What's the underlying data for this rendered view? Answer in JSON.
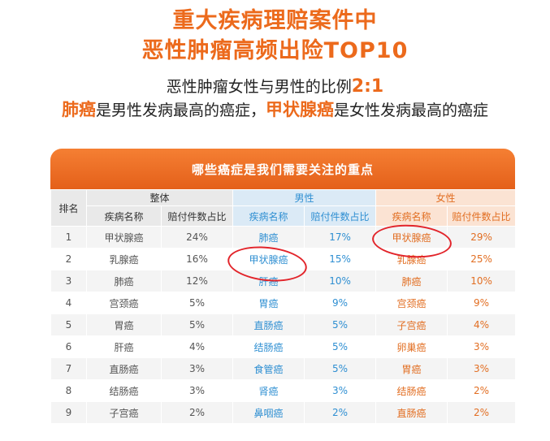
{
  "header": {
    "title_line1": "重大疾病理赔案件中",
    "title_line2": "恶性肿瘤高频出险TOP10",
    "ratio_text": "恶性肿瘤女性与男性的比例",
    "ratio_value": "2:1",
    "male_top": "肺癌",
    "male_text": "是男性发病最高的癌症，",
    "female_top": "甲状腺癌",
    "female_text": "是女性发病最高的癌症"
  },
  "table": {
    "caption": "哪些癌症是我们需要关注的重点",
    "rank_header": "排名",
    "group_overall": "整体",
    "group_male": "男性",
    "group_female": "女性",
    "col_disease": "疾病名称",
    "col_ratio": "赔付件数占比",
    "rows": [
      {
        "rank": "1",
        "o_name": "甲状腺癌",
        "o_pct": "24%",
        "m_name": "肺癌",
        "m_pct": "17%",
        "f_name": "甲状腺癌",
        "f_pct": "29%"
      },
      {
        "rank": "2",
        "o_name": "乳腺癌",
        "o_pct": "16%",
        "m_name": "甲状腺癌",
        "m_pct": "15%",
        "f_name": "乳腺癌",
        "f_pct": "25%"
      },
      {
        "rank": "3",
        "o_name": "肺癌",
        "o_pct": "12%",
        "m_name": "肝癌",
        "m_pct": "10%",
        "f_name": "肺癌",
        "f_pct": "10%"
      },
      {
        "rank": "4",
        "o_name": "宫颈癌",
        "o_pct": "5%",
        "m_name": "胃癌",
        "m_pct": "9%",
        "f_name": "宫颈癌",
        "f_pct": "9%"
      },
      {
        "rank": "5",
        "o_name": "胃癌",
        "o_pct": "5%",
        "m_name": "直肠癌",
        "m_pct": "5%",
        "f_name": "子宫癌",
        "f_pct": "4%"
      },
      {
        "rank": "6",
        "o_name": "肝癌",
        "o_pct": "4%",
        "m_name": "结肠癌",
        "m_pct": "5%",
        "f_name": "卵巢癌",
        "f_pct": "3%"
      },
      {
        "rank": "7",
        "o_name": "直肠癌",
        "o_pct": "3%",
        "m_name": "食管癌",
        "m_pct": "5%",
        "f_name": "胃癌",
        "f_pct": "3%"
      },
      {
        "rank": "8",
        "o_name": "结肠癌",
        "o_pct": "3%",
        "m_name": "肾癌",
        "m_pct": "3%",
        "f_name": "结肠癌",
        "f_pct": "2%"
      },
      {
        "rank": "9",
        "o_name": "子宫癌",
        "o_pct": "2%",
        "m_name": "鼻咽癌",
        "m_pct": "2%",
        "f_name": "直肠癌",
        "f_pct": "2%"
      }
    ]
  },
  "colors": {
    "accent_orange": "#ec6a1c",
    "male_blue": "#2f8fd2",
    "female_orange": "#e26e22",
    "circle_red": "#e2242a"
  }
}
